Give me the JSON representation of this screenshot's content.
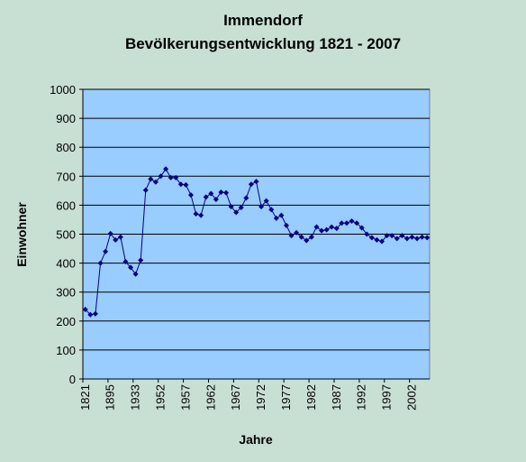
{
  "chart_data": {
    "type": "line",
    "title": "Immendorf",
    "subtitle": "Bevölkerungsentwicklung 1821 - 2007",
    "x_label": "Jahre",
    "y_label": "Einwohner",
    "categories": [
      "1821",
      null,
      null,
      null,
      null,
      "1895",
      null,
      null,
      null,
      null,
      "1933",
      null,
      null,
      null,
      null,
      "1952",
      null,
      null,
      null,
      null,
      "1957",
      null,
      null,
      null,
      null,
      "1962",
      null,
      null,
      null,
      null,
      "1967",
      null,
      null,
      null,
      null,
      "1972",
      null,
      null,
      null,
      null,
      "1977",
      null,
      null,
      null,
      null,
      "1982",
      null,
      null,
      null,
      null,
      "1987",
      null,
      null,
      null,
      null,
      "1992",
      null,
      null,
      null,
      null,
      "1997",
      null,
      null,
      null,
      null,
      "2002",
      null,
      null,
      null
    ],
    "values": [
      240,
      222,
      225,
      400,
      440,
      502,
      480,
      490,
      405,
      385,
      362,
      410,
      652,
      690,
      680,
      700,
      725,
      695,
      695,
      672,
      670,
      635,
      570,
      565,
      628,
      640,
      620,
      645,
      643,
      595,
      575,
      592,
      625,
      672,
      682,
      595,
      615,
      585,
      555,
      565,
      530,
      495,
      505,
      490,
      478,
      490,
      525,
      512,
      515,
      525,
      520,
      538,
      538,
      545,
      538,
      522,
      500,
      488,
      480,
      475,
      495,
      495,
      485,
      495,
      485,
      490,
      485,
      490,
      488
    ],
    "color": "#000080",
    "ylim": [
      0,
      1000
    ],
    "yticks": [
      0,
      100,
      200,
      300,
      400,
      500,
      600,
      700,
      800,
      900,
      1000
    ],
    "grid": true
  }
}
